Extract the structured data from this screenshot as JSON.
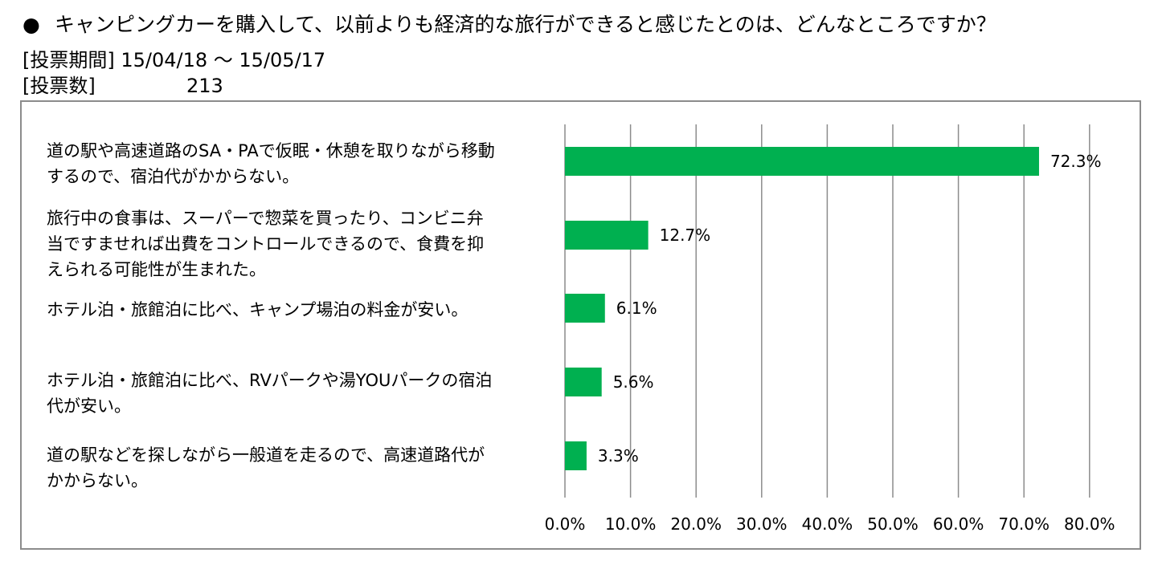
{
  "header": {
    "bullet": "●",
    "question": "キャンピングカーを購入して、以前よりも経済的な旅行ができると感じたとのは、どんなところですか？",
    "period_label": "[投票期間] 15/04/18 ～ 15/05/17",
    "votes_label": " [投票数]",
    "votes_value": "213"
  },
  "chart_data": {
    "type": "bar",
    "orientation": "horizontal",
    "categories": [
      "道の駅や高速道路のSA・PAで仮眠・休憩を取りながら移動\nするので、宿泊代がかからない。",
      "旅行中の食事は、スーパーで惣菜を買ったり、コンビニ弁\n当ですませれば出費をコントロールできるので、食費を抑\nえられる可能性が生まれた。",
      "ホテル泊・旅館泊に比べ、キャンプ場泊の料金が安い。",
      "ホテル泊・旅館泊に比べ、RVパークや湯YOUパークの宿泊\n代が安い。",
      "道の駅などを探しながら一般道を走るので、高速道路代が\nかからない。"
    ],
    "values": [
      72.3,
      12.7,
      6.1,
      5.6,
      3.3
    ],
    "data_labels": [
      "72.3%",
      "12.7%",
      "6.1%",
      "5.6%",
      "3.3%"
    ],
    "xlim": [
      0,
      80
    ],
    "ticks": [
      "0.0%",
      "10.0%",
      "20.0%",
      "30.0%",
      "40.0%",
      "50.0%",
      "60.0%",
      "70.0%",
      "80.0%"
    ],
    "tick_values": [
      0,
      10,
      20,
      30,
      40,
      50,
      60,
      70,
      80
    ],
    "grid": true,
    "bar_color": "#00b050",
    "grid_color": "#8c8c8c"
  }
}
